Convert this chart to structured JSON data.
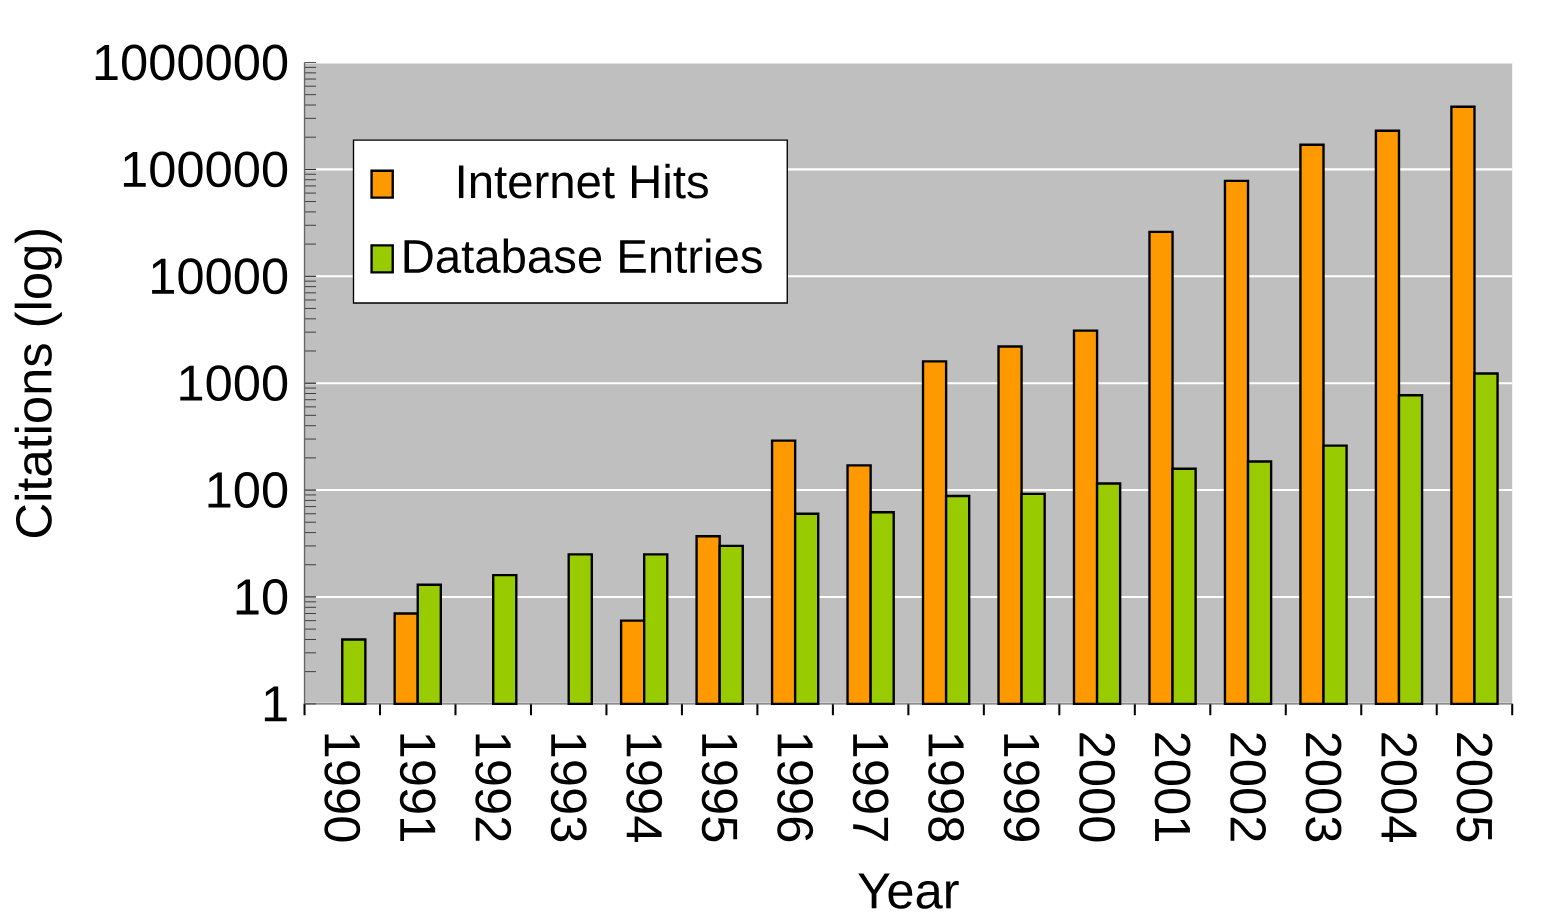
{
  "chart_data": {
    "type": "bar",
    "xlabel": "Year",
    "ylabel": "Citations (log)",
    "categories": [
      "1990",
      "1991",
      "1992",
      "1993",
      "1994",
      "1995",
      "1996",
      "1997",
      "1998",
      "1999",
      "2000",
      "2001",
      "2002",
      "2003",
      "2004",
      "2005"
    ],
    "series": [
      {
        "name": "Internet Hits",
        "color": "#ff9900",
        "values": [
          null,
          7,
          null,
          null,
          6,
          37,
          290,
          170,
          1600,
          2200,
          3100,
          26000,
          78000,
          170000,
          230000,
          385000
        ]
      },
      {
        "name": "Database Entries",
        "color": "#99cc00",
        "values": [
          4,
          13,
          16,
          25,
          25,
          30,
          60,
          62,
          88,
          92,
          115,
          158,
          185,
          260,
          770,
          1230
        ]
      }
    ],
    "ylim": [
      1,
      1000000
    ],
    "yticks": [
      1,
      10,
      100,
      1000,
      10000,
      100000,
      1000000
    ],
    "log": "y",
    "grid": "y",
    "legend": "top left"
  }
}
